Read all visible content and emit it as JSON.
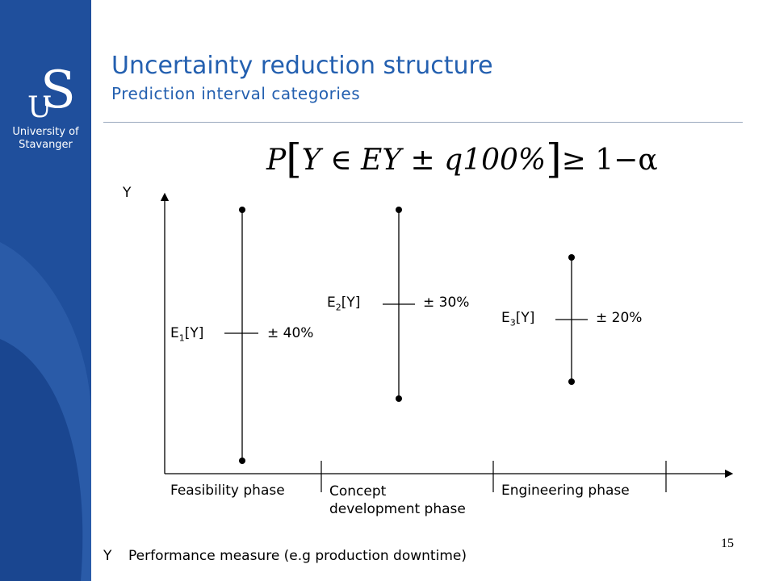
{
  "header": {
    "title": "Uncertainty reduction structure",
    "subtitle": "Prediction interval categories"
  },
  "sidebar": {
    "logo_u": "U",
    "logo_s": "S",
    "logo_name_line1": "University of",
    "logo_name_line2": "Stavanger"
  },
  "formula": {
    "p": "P",
    "body": "Y ∈ EY ± q100%",
    "rhs": "≥ 1−α"
  },
  "diagram": {
    "y_axis_label": "Y",
    "intervals": [
      {
        "label_base": "E",
        "label_sub": "1",
        "label_tail": "[Y]",
        "range": "± 40%"
      },
      {
        "label_base": "E",
        "label_sub": "2",
        "label_tail": "[Y]",
        "range": "± 30%"
      },
      {
        "label_base": "E",
        "label_sub": "3",
        "label_tail": "[Y]",
        "range": "± 20%"
      }
    ],
    "phases": [
      "Feasibility phase",
      "Concept development phase",
      "Engineering phase"
    ],
    "phase2_line1": "Concept",
    "phase2_line2": "development phase"
  },
  "footer": {
    "legend_symbol": "Y",
    "legend_text": "Performance measure (e.g production downtime)",
    "page_number": "15"
  },
  "colors": {
    "sidebar": "#1f4f9c",
    "title": "#2460b0"
  }
}
